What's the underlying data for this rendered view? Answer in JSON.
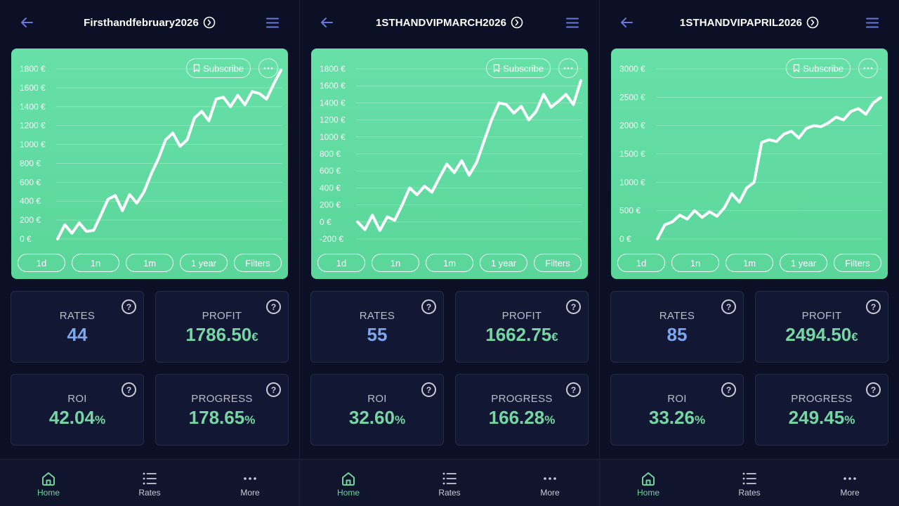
{
  "colors": {
    "accent_green": "#76d6a4",
    "accent_blue": "#7ea6ee",
    "chart_bg": "#5fd9a0",
    "nav_active": "#6fd39c",
    "menu_icon": "#6b77d6"
  },
  "icons": {
    "back": "arrow-left-icon",
    "title_info": "chevron-right-circle-icon",
    "menu": "hamburger-menu-icon",
    "subscribe": "bookmark-icon",
    "more": "ellipsis-icon",
    "help": "question-circle-icon",
    "home": "home-icon",
    "rates": "list-icon",
    "more_nav": "ellipsis-icon"
  },
  "panels": [
    {
      "title": "Firsthandfebruary2026",
      "subscribe_label": "Subscribe",
      "ranges": [
        "1d",
        "1n",
        "1m",
        "1 year",
        "Filters"
      ],
      "stats": {
        "rates": {
          "label": "RATES",
          "value": "44"
        },
        "profit": {
          "label": "PROFIT",
          "value": "1786.50",
          "unit": "€"
        },
        "roi": {
          "label": "ROI",
          "value": "42.04",
          "unit": "%"
        },
        "progress": {
          "label": "PROGRESS",
          "value": "178.65",
          "unit": "%"
        }
      },
      "nav": [
        "Home",
        "Rates",
        "More"
      ]
    },
    {
      "title": "1STHANDVIPMARCH2026",
      "subscribe_label": "Subscribe",
      "ranges": [
        "1d",
        "1n",
        "1m",
        "1 year",
        "Filters"
      ],
      "stats": {
        "rates": {
          "label": "RATES",
          "value": "55"
        },
        "profit": {
          "label": "PROFIT",
          "value": "1662.75",
          "unit": "€"
        },
        "roi": {
          "label": "ROI",
          "value": "32.60",
          "unit": "%"
        },
        "progress": {
          "label": "PROGRESS",
          "value": "166.28",
          "unit": "%"
        }
      },
      "nav": [
        "Home",
        "Rates",
        "More"
      ]
    },
    {
      "title": "1STHANDVIPAPRIL2026",
      "subscribe_label": "Subscribe",
      "ranges": [
        "1d",
        "1n",
        "1m",
        "1 year",
        "Filters"
      ],
      "stats": {
        "rates": {
          "label": "RATES",
          "value": "85"
        },
        "profit": {
          "label": "PROFIT",
          "value": "2494.50",
          "unit": "€"
        },
        "roi": {
          "label": "ROI",
          "value": "33.26",
          "unit": "%"
        },
        "progress": {
          "label": "PROGRESS",
          "value": "249.45",
          "unit": "%"
        }
      },
      "nav": [
        "Home",
        "Rates",
        "More"
      ]
    }
  ],
  "chart_data": [
    {
      "type": "line",
      "ylim": [
        0,
        1800
      ],
      "yticks": [
        "1800 €",
        "1600 €",
        "1400 €",
        "1200 €",
        "1000 €",
        "800 €",
        "600 €",
        "400 €",
        "200 €",
        "0 €"
      ],
      "y": [
        0,
        150,
        60,
        170,
        80,
        90,
        250,
        420,
        460,
        300,
        470,
        380,
        500,
        690,
        850,
        1050,
        1120,
        980,
        1050,
        1280,
        1350,
        1250,
        1480,
        1500,
        1400,
        1520,
        1420,
        1560,
        1540,
        1480,
        1640,
        1786
      ]
    },
    {
      "type": "line",
      "ylim": [
        -200,
        1800
      ],
      "yticks": [
        "1800 €",
        "1600 €",
        "1400 €",
        "1200 €",
        "1000 €",
        "800 €",
        "600 €",
        "400 €",
        "200 €",
        "0 €",
        "-200 €"
      ],
      "y": [
        0,
        -90,
        80,
        -100,
        60,
        20,
        200,
        400,
        320,
        420,
        350,
        520,
        680,
        580,
        720,
        550,
        700,
        950,
        1200,
        1400,
        1380,
        1280,
        1360,
        1200,
        1300,
        1500,
        1350,
        1420,
        1500,
        1380,
        1662
      ]
    },
    {
      "type": "line",
      "ylim": [
        0,
        3000
      ],
      "yticks": [
        "3000 €",
        "2500 €",
        "2000 €",
        "1500 €",
        "1000 €",
        "500 €",
        "0 €"
      ],
      "y": [
        0,
        250,
        300,
        420,
        350,
        500,
        380,
        480,
        400,
        550,
        800,
        650,
        900,
        1000,
        1700,
        1750,
        1720,
        1850,
        1900,
        1780,
        1950,
        2000,
        1980,
        2050,
        2150,
        2100,
        2250,
        2300,
        2200,
        2400,
        2494
      ]
    }
  ]
}
